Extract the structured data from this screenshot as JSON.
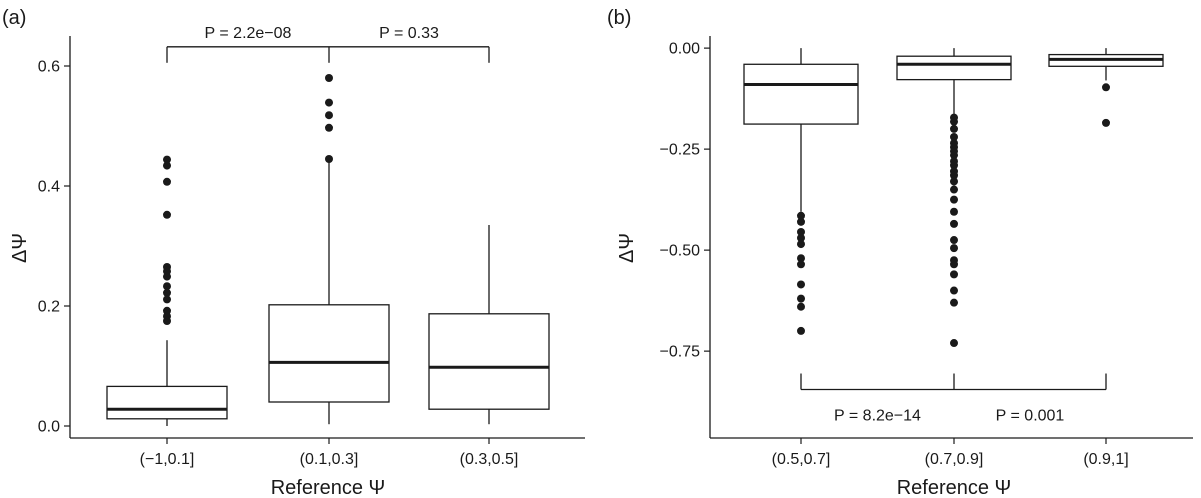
{
  "chart_data": [
    {
      "panel_label": "(a)",
      "type": "boxplot",
      "xlabel": "Reference Ψ",
      "ylabel": "ΔΨ",
      "ylim": [
        -0.02,
        0.65
      ],
      "yticks": [
        0.0,
        0.2,
        0.4,
        0.6
      ],
      "yticks_labels": [
        "0.0",
        "0.2",
        "0.4",
        "0.6"
      ],
      "categories": [
        "(−1,0.1]",
        "(0.1,0.3]",
        "(0.3,0.5]"
      ],
      "boxes": [
        {
          "category": "(−1,0.1]",
          "whisker_low": 0.0,
          "q1": 0.012,
          "median": 0.028,
          "q3": 0.066,
          "whisker_high": 0.143,
          "outliers": [
            0.444,
            0.434,
            0.407,
            0.352,
            0.265,
            0.258,
            0.249,
            0.233,
            0.222,
            0.211,
            0.192,
            0.183,
            0.175
          ]
        },
        {
          "category": "(0.1,0.3]",
          "whisker_low": 0.003,
          "q1": 0.04,
          "median": 0.106,
          "q3": 0.202,
          "whisker_high": 0.445,
          "outliers": [
            0.58,
            0.539,
            0.518,
            0.497,
            0.445
          ]
        },
        {
          "category": "(0.3,0.5]",
          "whisker_low": 0.003,
          "q1": 0.028,
          "median": 0.098,
          "q3": 0.187,
          "whisker_high": 0.335,
          "outliers": []
        }
      ],
      "comparisons": [
        {
          "from": "(−1,0.1]",
          "to": "(0.1,0.3]",
          "label": "P = 2.2e−08"
        },
        {
          "from": "(0.1,0.3]",
          "to": "(0.3,0.5]",
          "label": "P = 0.33"
        }
      ],
      "comparison_y": 0.632,
      "grid": false
    },
    {
      "panel_label": "(b)",
      "type": "boxplot",
      "xlabel": "Reference Ψ",
      "ylabel": "ΔΨ",
      "ylim": [
        -0.965,
        0.03
      ],
      "yticks": [
        0.0,
        -0.25,
        -0.5,
        -0.75
      ],
      "yticks_labels": [
        "0.00",
        "−0.25",
        "−0.50",
        "−0.75"
      ],
      "categories": [
        "(0.5,0.7]",
        "(0.7,0.9]",
        "(0.9,1]"
      ],
      "boxes": [
        {
          "category": "(0.5,0.7]",
          "whisker_low": -0.405,
          "q1": -0.188,
          "median": -0.09,
          "q3": -0.04,
          "whisker_high": 0.0,
          "outliers": [
            -0.415,
            -0.43,
            -0.455,
            -0.47,
            -0.485,
            -0.52,
            -0.535,
            -0.585,
            -0.62,
            -0.64,
            -0.7
          ]
        },
        {
          "category": "(0.7,0.9]",
          "whisker_low": -0.165,
          "q1": -0.078,
          "median": -0.04,
          "q3": -0.02,
          "whisker_high": 0.0,
          "outliers": [
            -0.172,
            -0.182,
            -0.2,
            -0.22,
            -0.235,
            -0.245,
            -0.255,
            -0.265,
            -0.28,
            -0.29,
            -0.305,
            -0.315,
            -0.33,
            -0.35,
            -0.375,
            -0.405,
            -0.435,
            -0.475,
            -0.495,
            -0.525,
            -0.535,
            -0.56,
            -0.6,
            -0.63,
            -0.73
          ]
        },
        {
          "category": "(0.9,1]",
          "whisker_low": -0.08,
          "q1": -0.045,
          "median": -0.028,
          "q3": -0.016,
          "whisker_high": 0.0,
          "outliers": [
            -0.097,
            -0.185
          ]
        }
      ],
      "comparisons": [
        {
          "from": "(0.5,0.7]",
          "to": "(0.7,0.9]",
          "label": "P = 8.2e−14"
        },
        {
          "from": "(0.7,0.9]",
          "to": "(0.9,1]",
          "label": "P = 0.001"
        }
      ],
      "comparison_y": -0.845,
      "grid": false
    }
  ]
}
